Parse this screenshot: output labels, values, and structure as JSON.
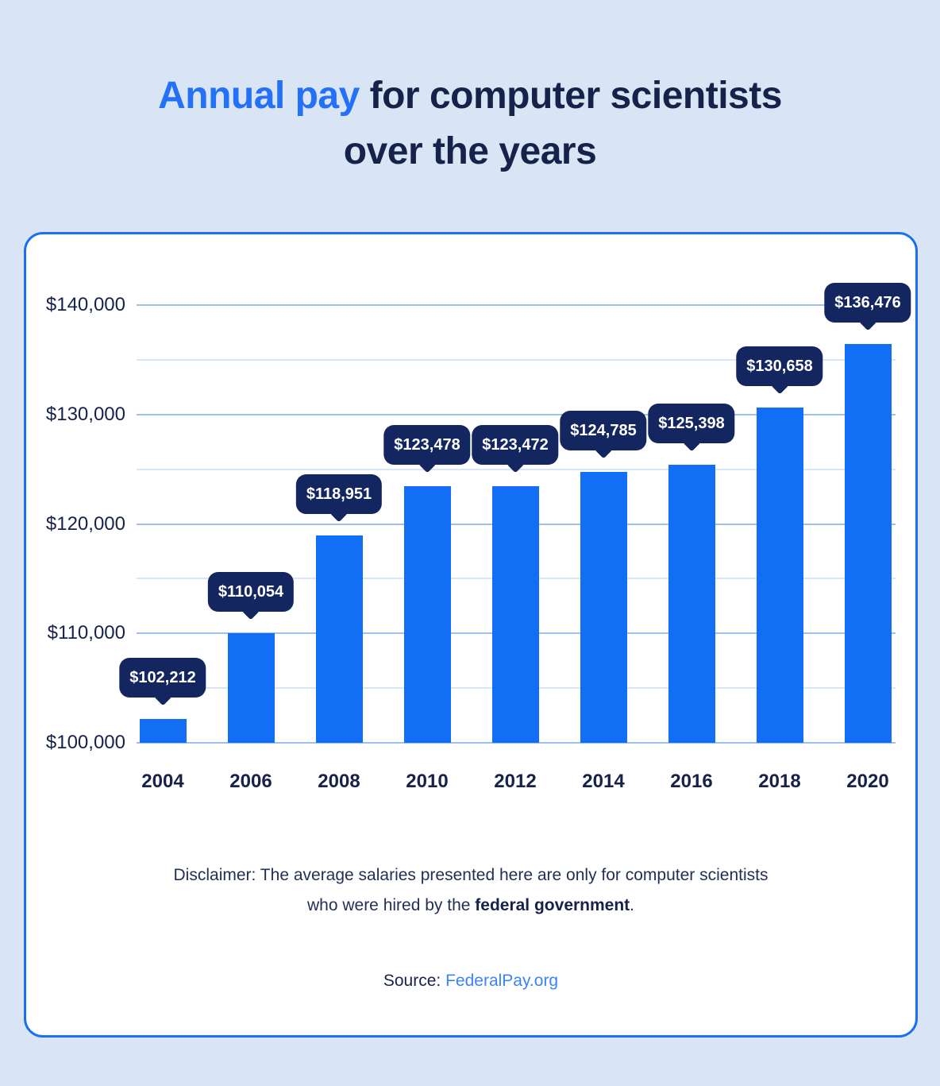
{
  "title": {
    "line1_highlight": "Annual pay",
    "line1_rest": " for computer scientists",
    "line2": "over the years"
  },
  "chart_data": {
    "type": "bar",
    "title": "Annual pay for computer scientists over the years",
    "categories": [
      "2004",
      "2006",
      "2008",
      "2010",
      "2012",
      "2014",
      "2016",
      "2018",
      "2020"
    ],
    "values": [
      102212,
      110054,
      118951,
      123478,
      123472,
      124785,
      125398,
      130658,
      136476
    ],
    "value_labels": [
      "$102,212",
      "$110,054",
      "$118,951",
      "$123,478",
      "$123,472",
      "$124,785",
      "$125,398",
      "$130,658",
      "$136,476"
    ],
    "xlabel": "",
    "ylabel": "",
    "ylim": [
      100000,
      140000
    ],
    "ytick_interval": 10000,
    "yticks_minor_interval": 5000,
    "ytick_labels_top_to_bottom": [
      "$140,000",
      "$130,000",
      "$120,000",
      "$110,000",
      "$100,000"
    ],
    "grid": "horizontal, major and minor lines",
    "legend": "none"
  },
  "disclaimer": {
    "line1": "Disclaimer: The average salaries presented here are only for computer scientists",
    "line2_prefix": "who were hired by the ",
    "line2_bold": "federal government",
    "line2_suffix": "."
  },
  "source": {
    "label": "Source: ",
    "link": "FederalPay.org"
  },
  "colors": {
    "page_background": "#D9E5F4",
    "card_background": "#FFFFFF",
    "card_border": "#1B6FF3",
    "bar": "#116EF5",
    "tooltip_background": "#14265F",
    "tooltip_text": "#FFFFFF",
    "grid_major": "#9DC1EF",
    "grid_minor": "#D9E6F7",
    "navy_text": "#16224A",
    "title_highlight": "#2470F6",
    "link": "#3C83F5"
  }
}
